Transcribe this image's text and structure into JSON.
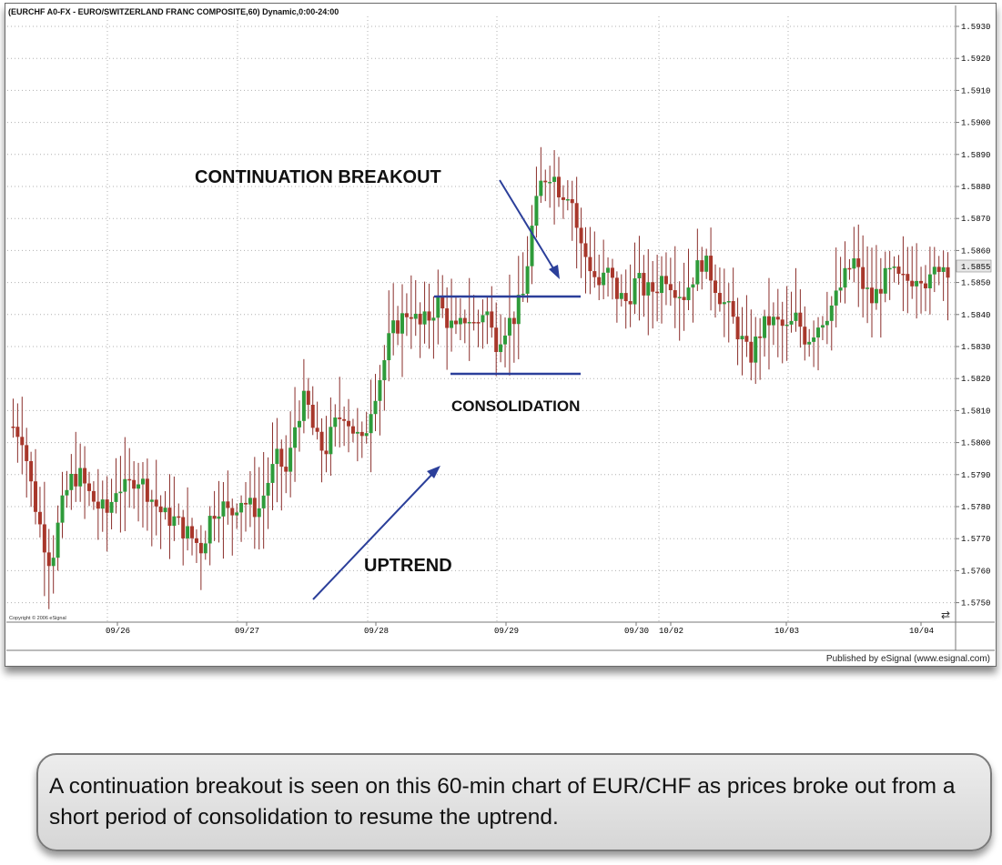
{
  "header": {
    "title": "(EURCHF A0-FX - EURO/SWITZERLAND FRANC COMPOSITE,60) Dynamic,0:00-24:00"
  },
  "footer": {
    "published": "Published by eSignal (www.esignal.com)",
    "copyright": "Copyright © 2006 eSignal"
  },
  "caption": "A continuation breakout is seen on this 60-min chart of EUR/CHF as prices broke out from a short period of consolidation to resume the uptrend.",
  "colors": {
    "up": "#2e9b3a",
    "down": "#a8372b",
    "wick": "#8a2e2a",
    "annotation": "#2b3f9a",
    "grid": "#b0b0b0"
  },
  "chart_data": {
    "type": "candlestick",
    "ylim": [
      1.5745,
      1.5935
    ],
    "yticks": [
      "1.5930",
      "1.5920",
      "1.5910",
      "1.5900",
      "1.5890",
      "1.5880",
      "1.5870",
      "1.5860",
      "1.5850",
      "1.5840",
      "1.5830",
      "1.5820",
      "1.5810",
      "1.5800",
      "1.5790",
      "1.5780",
      "1.5770",
      "1.5760",
      "1.5750"
    ],
    "last_price": "1.5855",
    "xticks": [
      "09/26",
      "09/27",
      "09/28",
      "09/29",
      "09/30",
      "10/02",
      "10/03",
      "10/04"
    ],
    "grid": true,
    "annotations": [
      "CONTINUATION BREAKOUT",
      "CONSOLIDATION",
      "UPTREND"
    ],
    "consolidation_range": {
      "high": 1.5846,
      "low": 1.5822
    },
    "close_path": [
      1.5805,
      1.5802,
      1.5785,
      1.5772,
      1.5762,
      1.5778,
      1.5788,
      1.579,
      1.5784,
      1.578,
      1.5778,
      1.5787,
      1.5785,
      1.579,
      1.5786,
      1.5781,
      1.5777,
      1.5776,
      1.5773,
      1.577,
      1.5767,
      1.5778,
      1.5781,
      1.5777,
      1.5783,
      1.578,
      1.5779,
      1.5788,
      1.5795,
      1.579,
      1.5808,
      1.5814,
      1.5801,
      1.5797,
      1.5805,
      1.581,
      1.5804,
      1.5799,
      1.5813,
      1.5822,
      1.5834,
      1.5838,
      1.5842,
      1.5836,
      1.5839,
      1.5844,
      1.5838,
      1.5834,
      1.584,
      1.5836,
      1.5843,
      1.5831,
      1.5836,
      1.5839,
      1.5846,
      1.5868,
      1.5882,
      1.5885,
      1.5878,
      1.5879,
      1.5862,
      1.5856,
      1.5849,
      1.5853,
      1.5846,
      1.5844,
      1.5851,
      1.5847,
      1.5848,
      1.5853,
      1.5849,
      1.5846,
      1.5852,
      1.5857,
      1.5852,
      1.5845,
      1.584,
      1.5833,
      1.5826,
      1.5834,
      1.5838,
      1.5837,
      1.5835,
      1.5839,
      1.5832,
      1.5836,
      1.584,
      1.5844,
      1.5851,
      1.5857,
      1.5849,
      1.5844,
      1.585,
      1.5853,
      1.585,
      1.5851,
      1.5854,
      1.5849,
      1.5856,
      1.5855
    ]
  }
}
